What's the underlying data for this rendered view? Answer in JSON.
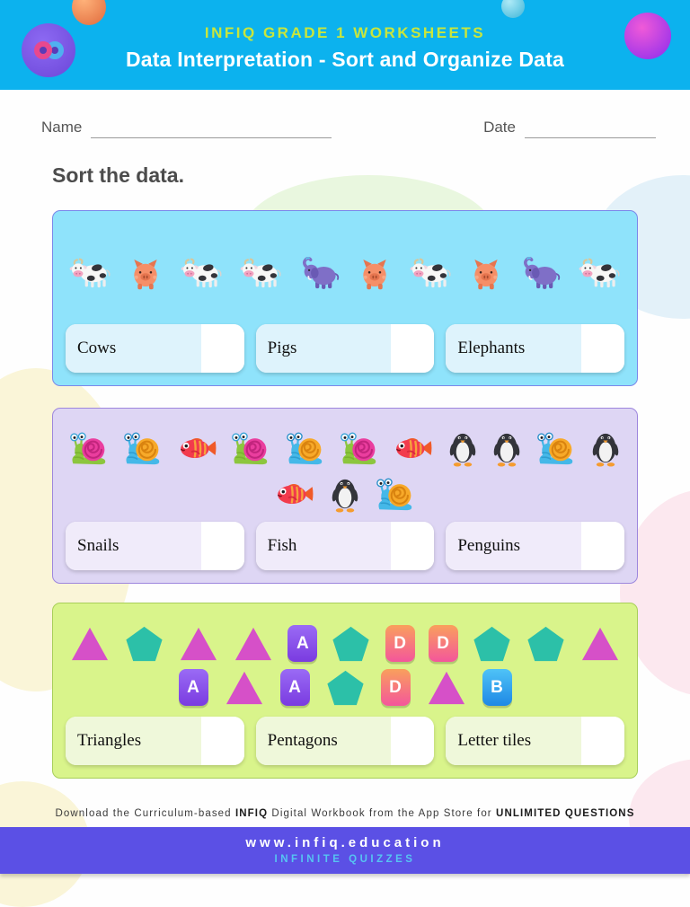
{
  "header": {
    "kicker": "INFIQ GRADE 1 WORKSHEETS",
    "title": "Data Interpretation - Sort and Organize Data"
  },
  "fields": {
    "name_label": "Name",
    "date_label": "Date"
  },
  "instruction": "Sort the data.",
  "sections": [
    {
      "id": "farm-animals",
      "theme": "blue",
      "rows": [
        [
          "cow",
          "pig",
          "cow",
          "cow",
          "elephant",
          "pig",
          "cow",
          "pig",
          "elephant",
          "cow"
        ]
      ],
      "answers": [
        {
          "label": "Cows"
        },
        {
          "label": "Pigs"
        },
        {
          "label": "Elephants"
        }
      ]
    },
    {
      "id": "mixed-animals",
      "theme": "purple",
      "rows": [
        [
          "snail-pink",
          "snail-orange",
          "fish",
          "snail-pink",
          "snail-orange",
          "snail-pink",
          "fish",
          "penguin",
          "penguin",
          "snail-orange",
          "penguin"
        ],
        [
          "fish",
          "penguin",
          "snail-orange"
        ]
      ],
      "answers": [
        {
          "label": "Snails"
        },
        {
          "label": "Fish"
        },
        {
          "label": "Penguins"
        }
      ]
    },
    {
      "id": "shapes",
      "theme": "green",
      "rows": [
        [
          "triangle",
          "pentagon",
          "triangle",
          "triangle",
          "tile-A",
          "pentagon",
          "tile-D",
          "tile-D",
          "pentagon",
          "pentagon",
          "triangle"
        ],
        [
          "tile-A",
          "triangle",
          "tile-A",
          "pentagon",
          "tile-D",
          "triangle",
          "tile-B"
        ]
      ],
      "answers": [
        {
          "label": "Triangles"
        },
        {
          "label": "Pentagons"
        },
        {
          "label": "Letter tiles"
        }
      ]
    }
  ],
  "footer": {
    "download": {
      "prefix": "Download the Curriculum-based ",
      "brand": "INFIQ",
      "middle": " Digital Workbook from the App Store for ",
      "emphasis": "UNLIMITED QUESTIONS"
    },
    "website": "www.infiq.education",
    "tagline": "INFINITE QUIZZES"
  },
  "colors": {
    "header_bg": "#0cb2ee",
    "kicker_text": "#c9e63c",
    "panel_blue_bg": "#8fe3fb",
    "panel_purple_bg": "#ded6f4",
    "panel_green_bg": "#d9f48b",
    "footer_bar_bg": "#5b50e5",
    "tagline_text": "#56c4f2",
    "triangle": "#d650c8",
    "pentagon": "#2cc0a8",
    "tile_a": "#7a3be0",
    "tile_d": "#f4569b",
    "tile_b": "#1e88e5"
  }
}
